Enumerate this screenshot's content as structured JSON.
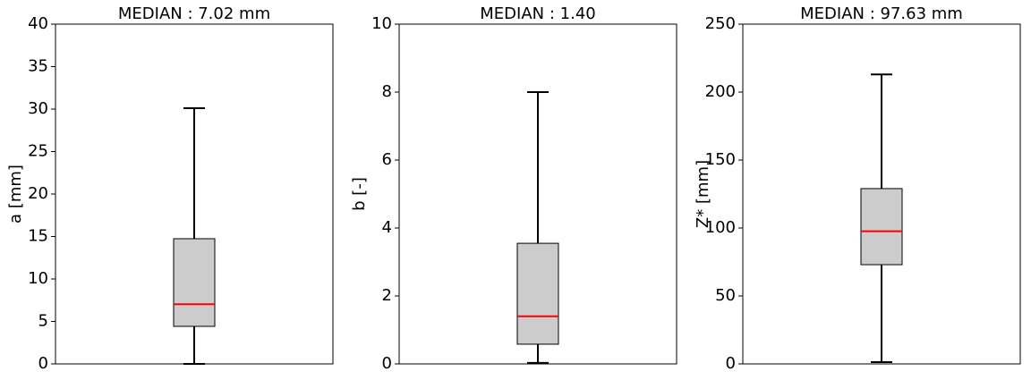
{
  "chart_data": [
    {
      "type": "box",
      "title": "MEDIAN : 7.02 mm",
      "ylabel": "a [mm]",
      "ylim": [
        0,
        40
      ],
      "yticks": [
        0,
        5,
        10,
        15,
        20,
        25,
        30,
        35,
        40
      ],
      "whislo": 0,
      "q1": 4.42,
      "med": 7.02,
      "q3": 14.74,
      "whishi": 30.1,
      "color": "#cccccc",
      "median_color": "#ff0000"
    },
    {
      "type": "box",
      "title": "MEDIAN : 1.40",
      "ylabel": "b [-]",
      "ylim": [
        0,
        10
      ],
      "yticks": [
        0,
        2,
        4,
        6,
        8,
        10
      ],
      "whislo": 0.03,
      "q1": 0.58,
      "med": 1.4,
      "q3": 3.55,
      "whishi": 8.0,
      "color": "#cccccc",
      "median_color": "#ff0000"
    },
    {
      "type": "box",
      "title": "MEDIAN : 97.63 mm",
      "ylabel": "Z* [mm]",
      "ylim": [
        0,
        250
      ],
      "yticks": [
        0,
        50,
        100,
        150,
        200,
        250
      ],
      "whislo": 1.3,
      "q1": 73,
      "med": 97.63,
      "q3": 129,
      "whishi": 213,
      "color": "#cccccc",
      "median_color": "#ff0000"
    }
  ]
}
